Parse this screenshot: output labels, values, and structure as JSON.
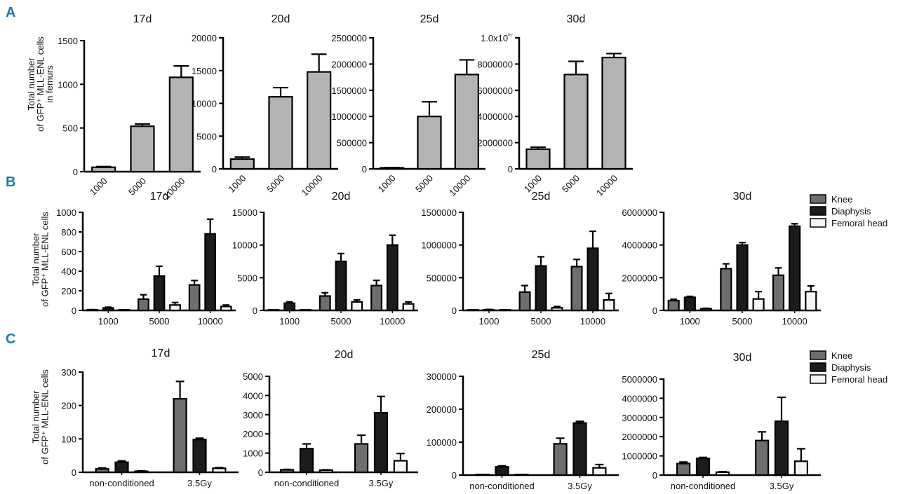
{
  "colors": {
    "panel_letter": "#1a7ab0",
    "single": "#b3b3b3",
    "knee": "#6e6e6e",
    "diaphysis": "#1c1c1c",
    "femoral_head": "#f5f5f5",
    "stroke": "#000000"
  },
  "panels": [
    {
      "letter": "A",
      "ylabel": [
        "Total number",
        "of GFP⁺ MLL-ENL cells",
        "in femurs"
      ]
    },
    {
      "letter": "B",
      "ylabel": [
        "Total number",
        "of GFP⁺ MLL-ENL cells"
      ],
      "legend": [
        "Knee",
        "Diaphysis",
        "Femoral head"
      ]
    },
    {
      "letter": "C",
      "ylabel": [
        "Total number",
        "of GFP⁺ MLL-ENL cells"
      ],
      "legend": [
        "Knee",
        "Diaphysis",
        "Femoral head"
      ]
    }
  ],
  "chart_data": [
    {
      "panel": "A",
      "type": "bar",
      "title": "17d",
      "categories": [
        "1000",
        "5000",
        "10000"
      ],
      "ylim": [
        0,
        1500
      ],
      "yticks": [
        "0",
        "500",
        "1000",
        "1500"
      ],
      "series": [
        {
          "values": [
            50,
            520,
            1080
          ],
          "errors": [
            8,
            25,
            130
          ]
        }
      ]
    },
    {
      "panel": "A",
      "type": "bar",
      "title": "20d",
      "categories": [
        "1000",
        "5000",
        "10000"
      ],
      "ylim": [
        0,
        20000
      ],
      "yticks": [
        "0",
        "5000",
        "10000",
        "15000",
        "20000"
      ],
      "series": [
        {
          "values": [
            1500,
            11000,
            14800
          ],
          "errors": [
            300,
            1400,
            2700
          ]
        }
      ]
    },
    {
      "panel": "A",
      "type": "bar",
      "title": "25d",
      "categories": [
        "1000",
        "5000",
        "10000"
      ],
      "ylim": [
        0,
        2500000
      ],
      "yticks": [
        "0",
        "500000",
        "1000000",
        "1500000",
        "2000000",
        "2500000"
      ],
      "series": [
        {
          "values": [
            20000,
            1000000,
            1800000
          ],
          "errors": [
            5000,
            280000,
            280000
          ]
        }
      ]
    },
    {
      "panel": "A",
      "type": "bar",
      "title": "30d",
      "categories": [
        "1000",
        "5000",
        "10000"
      ],
      "ylim": [
        0,
        10000000
      ],
      "yticks": [
        "0",
        "2000000",
        "4000000",
        "6000000",
        "8000000",
        "1.0x10⁰⁷"
      ],
      "series": [
        {
          "values": [
            1500000,
            7200000,
            8500000
          ],
          "errors": [
            150000,
            1000000,
            300000
          ]
        }
      ]
    },
    {
      "panel": "B",
      "type": "bar",
      "title": "17d",
      "categories": [
        "1000",
        "5000",
        "10000"
      ],
      "ylim": [
        0,
        1000
      ],
      "yticks": [
        "0",
        "200",
        "400",
        "600",
        "800",
        "1000"
      ],
      "series": [
        {
          "name": "Knee",
          "values": [
            5,
            115,
            260
          ],
          "errors": [
            3,
            45,
            45
          ]
        },
        {
          "name": "Diaphysis",
          "values": [
            25,
            350,
            780
          ],
          "errors": [
            8,
            100,
            150
          ]
        },
        {
          "name": "Femoral head",
          "values": [
            3,
            55,
            40
          ],
          "errors": [
            2,
            25,
            15
          ]
        }
      ]
    },
    {
      "panel": "B",
      "type": "bar",
      "title": "20d",
      "categories": [
        "1000",
        "5000",
        "10000"
      ],
      "ylim": [
        0,
        15000
      ],
      "yticks": [
        "0",
        "5000",
        "10000",
        "15000"
      ],
      "series": [
        {
          "name": "Knee",
          "values": [
            50,
            2200,
            3800
          ],
          "errors": [
            20,
            500,
            800
          ]
        },
        {
          "name": "Diaphysis",
          "values": [
            1100,
            7500,
            10000
          ],
          "errors": [
            200,
            1200,
            1500
          ]
        },
        {
          "name": "Femoral head",
          "values": [
            50,
            1300,
            1000
          ],
          "errors": [
            20,
            300,
            300
          ]
        }
      ]
    },
    {
      "panel": "B",
      "type": "bar",
      "title": "25d",
      "categories": [
        "1000",
        "5000",
        "10000"
      ],
      "ylim": [
        0,
        1500000
      ],
      "yticks": [
        "0",
        "500000",
        "1000000",
        "1500000"
      ],
      "series": [
        {
          "name": "Knee",
          "values": [
            0,
            280000,
            670000
          ],
          "errors": [
            0,
            100000,
            110000
          ]
        },
        {
          "name": "Diaphysis",
          "values": [
            10000,
            680000,
            950000
          ],
          "errors": [
            5000,
            140000,
            260000
          ]
        },
        {
          "name": "Femoral head",
          "values": [
            0,
            40000,
            160000
          ],
          "errors": [
            0,
            20000,
            100000
          ]
        }
      ]
    },
    {
      "panel": "B",
      "type": "bar",
      "title": "30d",
      "categories": [
        "1000",
        "5000",
        "10000"
      ],
      "ylim": [
        0,
        6000000
      ],
      "yticks": [
        "0",
        "2000000",
        "4000000",
        "6000000"
      ],
      "series": [
        {
          "name": "Knee",
          "values": [
            600000,
            2550000,
            2150000
          ],
          "errors": [
            80000,
            300000,
            450000
          ]
        },
        {
          "name": "Diaphysis",
          "values": [
            800000,
            4000000,
            5150000
          ],
          "errors": [
            60000,
            150000,
            150000
          ]
        },
        {
          "name": "Femoral head",
          "values": [
            100000,
            700000,
            1150000
          ],
          "errors": [
            30000,
            450000,
            350000
          ]
        }
      ]
    },
    {
      "panel": "C",
      "type": "bar",
      "title": "17d",
      "categories": [
        "non-conditioned",
        "3.5Gy"
      ],
      "ylim": [
        0,
        300
      ],
      "yticks": [
        "0",
        "100",
        "200",
        "300"
      ],
      "series": [
        {
          "name": "Knee",
          "values": [
            10,
            220
          ],
          "errors": [
            3,
            52
          ]
        },
        {
          "name": "Diaphysis",
          "values": [
            30,
            98
          ],
          "errors": [
            4,
            4
          ]
        },
        {
          "name": "Femoral head",
          "values": [
            3,
            12
          ],
          "errors": [
            1,
            2
          ]
        }
      ]
    },
    {
      "panel": "C",
      "type": "bar",
      "title": "20d",
      "categories": [
        "non-conditioned",
        "3.5Gy"
      ],
      "ylim": [
        0,
        5000
      ],
      "yticks": [
        "0",
        "1000",
        "2000",
        "3000",
        "4000",
        "5000"
      ],
      "series": [
        {
          "name": "Knee",
          "values": [
            130,
            1480
          ],
          "errors": [
            20,
            450
          ]
        },
        {
          "name": "Diaphysis",
          "values": [
            1230,
            3100
          ],
          "errors": [
            250,
            850
          ]
        },
        {
          "name": "Femoral head",
          "values": [
            110,
            600
          ],
          "errors": [
            20,
            380
          ]
        }
      ]
    },
    {
      "panel": "C",
      "type": "bar",
      "title": "25d",
      "categories": [
        "non-conditioned",
        "3.5Gy"
      ],
      "ylim": [
        0,
        300000
      ],
      "yticks": [
        "0",
        "100000",
        "200000",
        "300000"
      ],
      "series": [
        {
          "name": "Knee",
          "values": [
            500,
            95000
          ],
          "errors": [
            200,
            17000
          ]
        },
        {
          "name": "Diaphysis",
          "values": [
            25000,
            158000
          ],
          "errors": [
            3000,
            5000
          ]
        },
        {
          "name": "Femoral head",
          "values": [
            300,
            22000
          ],
          "errors": [
            100,
            10000
          ]
        }
      ]
    },
    {
      "panel": "C",
      "type": "bar",
      "title": "30d",
      "categories": [
        "non-conditioned",
        "3.5Gy"
      ],
      "ylim": [
        0,
        5000000
      ],
      "yticks": [
        "0",
        "1000000",
        "2000000",
        "3000000",
        "4000000",
        "5000000"
      ],
      "series": [
        {
          "name": "Knee",
          "values": [
            600000,
            1800000
          ],
          "errors": [
            80000,
            450000
          ]
        },
        {
          "name": "Diaphysis",
          "values": [
            870000,
            2800000
          ],
          "errors": [
            50000,
            1250000
          ]
        },
        {
          "name": "Femoral head",
          "values": [
            150000,
            720000
          ],
          "errors": [
            30000,
            650000
          ]
        }
      ]
    }
  ]
}
